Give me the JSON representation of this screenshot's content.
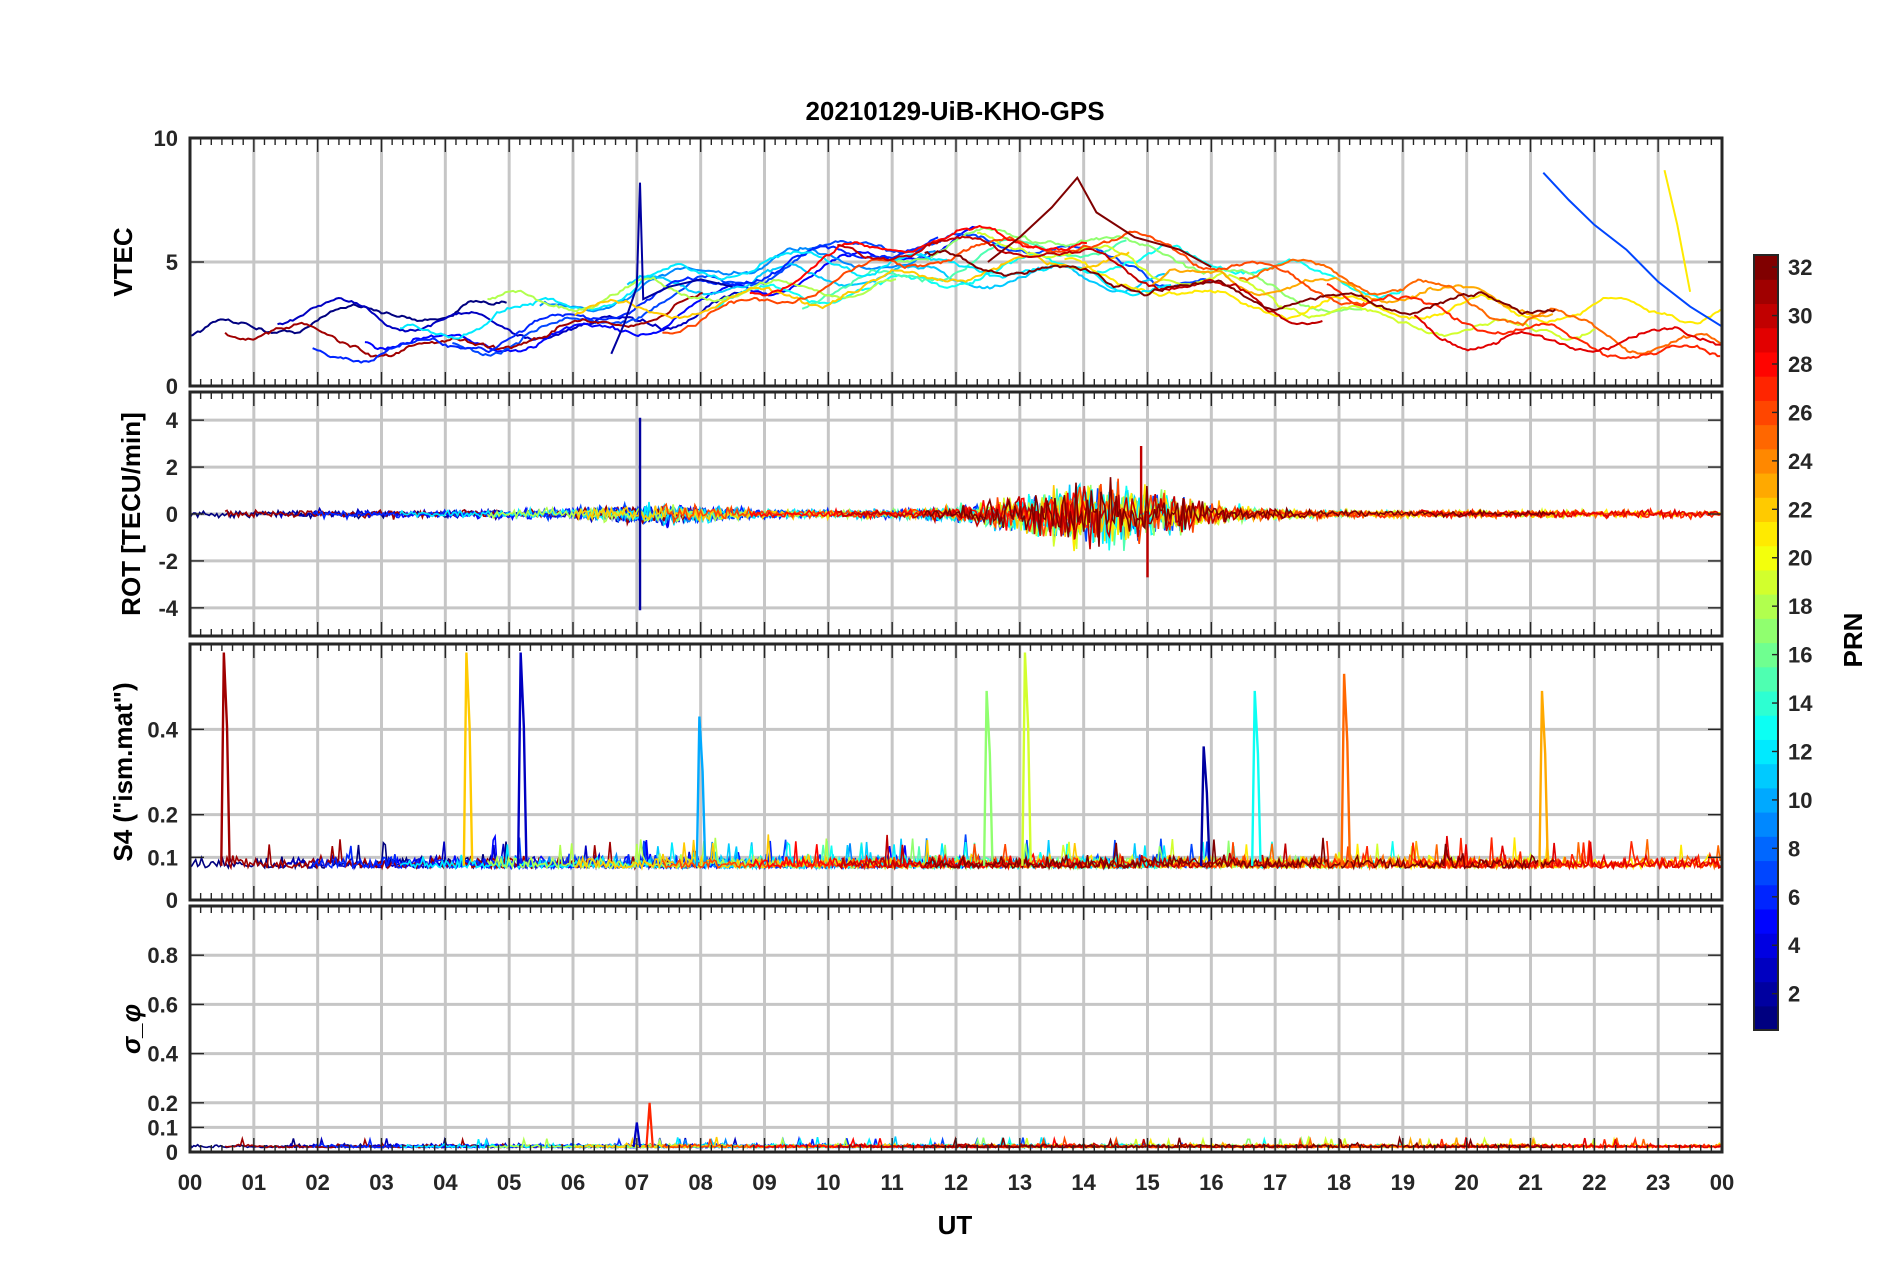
{
  "chart_data": {
    "type": "line",
    "title": "20210129-UiB-KHO-GPS",
    "xlabel": "UT",
    "x_tick_labels": [
      "00",
      "01",
      "02",
      "03",
      "04",
      "05",
      "06",
      "07",
      "08",
      "09",
      "10",
      "11",
      "12",
      "13",
      "14",
      "15",
      "16",
      "17",
      "18",
      "19",
      "20",
      "21",
      "22",
      "23",
      "00"
    ],
    "xlim_hours": [
      0,
      24
    ],
    "grid": true,
    "colorbar": {
      "label": "PRN",
      "range": [
        1,
        32
      ],
      "tick_labels": [
        "2",
        "4",
        "6",
        "8",
        "10",
        "12",
        "14",
        "16",
        "18",
        "20",
        "22",
        "24",
        "26",
        "28",
        "30",
        "32"
      ],
      "colormap": "jet",
      "placement": "right"
    },
    "panels": [
      {
        "id": "vtec",
        "ylabel": "VTEC",
        "ylim": [
          0,
          10
        ],
        "yticks": [
          0,
          5,
          10
        ],
        "ytick_labels": [
          "0",
          "5",
          "10"
        ],
        "description_of_series": "per-PRN VTEC tracks; overall level ~2 TECU near 00 UT rising to ~5-6 TECU 10-15 UT, peak ~8.4 near 13.9 UT (PRN 32), spike ~8.2 at 07 UT (PRN 2)",
        "series": [
          {
            "prn": 2,
            "x": [
              6.6,
              6.8,
              7.0,
              7.05,
              7.1,
              7.5,
              8.0,
              8.5
            ],
            "y": [
              1.3,
              2.5,
              4.0,
              8.2,
              3.5,
              4.0,
              4.3,
              4.0
            ]
          },
          {
            "prn": 32,
            "x": [
              12.5,
              13.0,
              13.5,
              13.9,
              14.2,
              14.8,
              15.5,
              16.0
            ],
            "y": [
              5.0,
              6.0,
              7.2,
              8.4,
              7.0,
              6.0,
              5.5,
              4.8
            ]
          },
          {
            "prn": 7,
            "x": [
              21.2,
              21.6,
              22.0,
              22.5,
              23.0,
              23.5,
              24.0
            ],
            "y": [
              8.6,
              7.5,
              6.5,
              5.5,
              4.2,
              3.2,
              2.4
            ]
          },
          {
            "prn": 21,
            "x": [
              23.1,
              23.3,
              23.5
            ],
            "y": [
              8.7,
              6.5,
              3.8
            ]
          }
        ]
      },
      {
        "id": "rot",
        "ylabel": "ROT [TECU/min]",
        "ylim": [
          -5.2,
          5.2
        ],
        "yticks": [
          -4,
          -2,
          0,
          2,
          4
        ],
        "ytick_labels": [
          "-4",
          "-2",
          "0",
          "2",
          "4"
        ],
        "description_of_series": "per-PRN rate of TEC; noise ±0.3 quiet, ±1.5-2.5 between 12-16 UT, spike ±4.1 at 07 UT",
        "extremes": [
          {
            "x": 7.05,
            "y": 4.1
          },
          {
            "x": 7.05,
            "y": -4.1
          },
          {
            "x": 14.9,
            "y": 2.9
          },
          {
            "x": 15.0,
            "y": -2.7
          }
        ]
      },
      {
        "id": "s4",
        "ylabel": "S4 (\"ism.mat\")",
        "ylim": [
          0,
          0.6
        ],
        "yticks": [
          0,
          0.1,
          0.2,
          0.4
        ],
        "ytick_labels": [
          "0",
          "0.1",
          "0.2",
          "0.4"
        ],
        "description_of_series": "per-PRN S4 index; background 0.05-0.12 with spikes",
        "spikes": [
          {
            "prn": 31,
            "x": 0.55,
            "y": 0.58
          },
          {
            "prn": 22,
            "x": 4.35,
            "y": 0.58
          },
          {
            "prn": 3,
            "x": 5.2,
            "y": 0.58
          },
          {
            "prn": 10,
            "x": 8.0,
            "y": 0.43
          },
          {
            "prn": 17,
            "x": 12.5,
            "y": 0.49
          },
          {
            "prn": 19,
            "x": 13.1,
            "y": 0.58
          },
          {
            "prn": 2,
            "x": 15.9,
            "y": 0.36
          },
          {
            "prn": 13,
            "x": 16.7,
            "y": 0.49
          },
          {
            "prn": 25,
            "x": 18.1,
            "y": 0.53
          },
          {
            "prn": 23,
            "x": 21.2,
            "y": 0.49
          }
        ]
      },
      {
        "id": "sigma_phi",
        "ylabel": "σ_φ",
        "ylim": [
          0,
          1
        ],
        "yticks": [
          0,
          0.1,
          0.2,
          0.4,
          0.6,
          0.8
        ],
        "ytick_labels": [
          "0",
          "0.1",
          "0.2",
          "0.4",
          "0.6",
          "0.8"
        ],
        "description_of_series": "per-PRN phase scintillation; mostly below 0.05, max ~0.2 near 07.2 UT",
        "spikes": [
          {
            "prn": 27,
            "x": 7.2,
            "y": 0.2
          },
          {
            "prn": 3,
            "x": 7.0,
            "y": 0.12
          }
        ]
      }
    ]
  }
}
